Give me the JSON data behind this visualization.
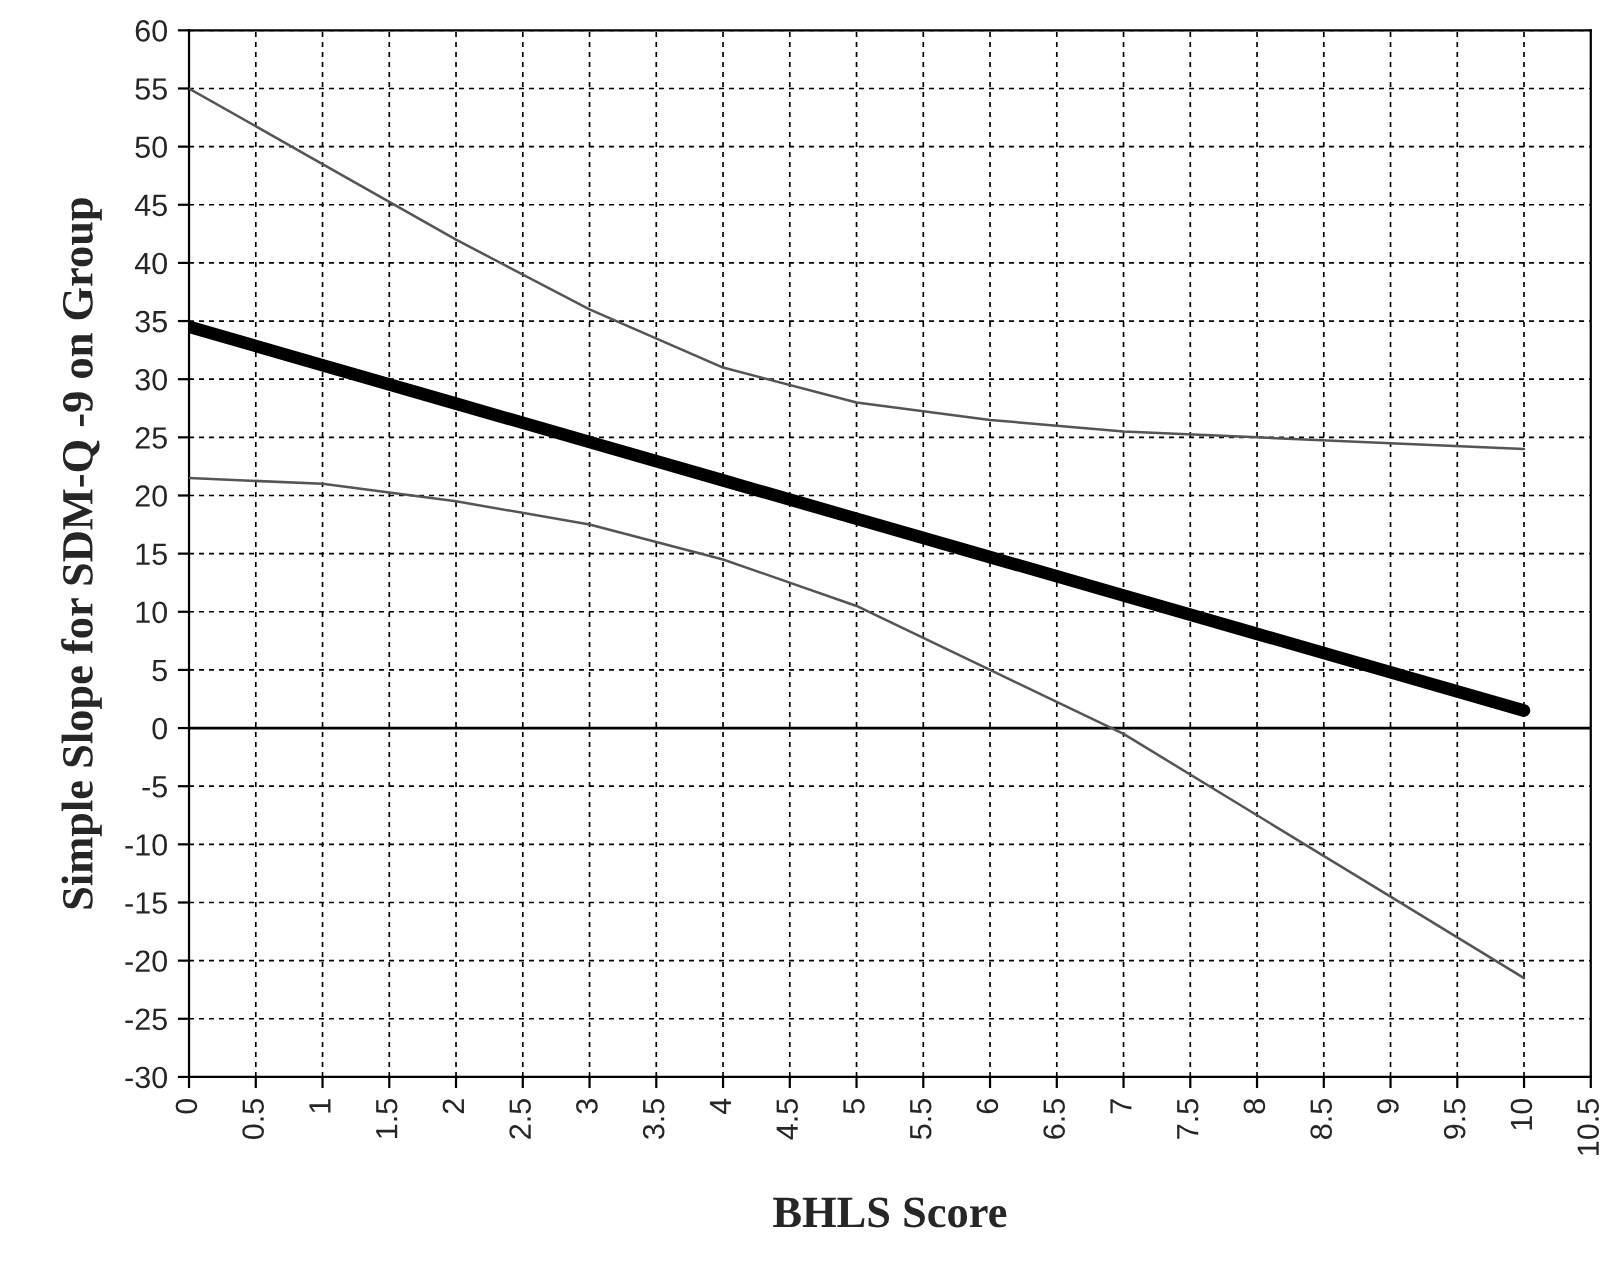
{
  "chart_data": {
    "type": "line",
    "xlabel": "BHLS Score",
    "ylabel": "Simple Slope for SDM-Q -9 on Group",
    "x": [
      0,
      1,
      2,
      3,
      4,
      5,
      6,
      7,
      8,
      9,
      10
    ],
    "series": [
      {
        "color": "#000000",
        "values": [
          34.5,
          31.2,
          27.9,
          24.6,
          21.3,
          18.0,
          14.7,
          11.4,
          8.1,
          4.8,
          1.5
        ]
      },
      {
        "color": "#555555",
        "values": [
          55,
          48.5,
          42,
          36,
          31,
          28,
          26.5,
          25.5,
          25,
          24.5,
          24
        ]
      },
      {
        "color": "#555555",
        "values": [
          21.5,
          21,
          19.5,
          17.5,
          14.5,
          10.5,
          5,
          -0.5,
          -7.5,
          -14.5,
          -21.5
        ]
      }
    ],
    "xlim": [
      0,
      10.5
    ],
    "xticks": [
      0,
      0.5,
      1,
      1.5,
      2,
      2.5,
      3,
      3.5,
      4,
      4.5,
      5,
      5.5,
      6,
      6.5,
      7,
      7.5,
      8,
      8.5,
      9,
      9.5,
      10,
      10.5
    ],
    "ylim": [
      -30,
      60
    ],
    "yticks": [
      -30,
      -25,
      -20,
      -15,
      -10,
      -5,
      0,
      5,
      10,
      15,
      20,
      25,
      30,
      35,
      40,
      45,
      50,
      55,
      60
    ],
    "ref_lines": [
      {
        "axis": "y",
        "value": 0,
        "color": "#000000"
      }
    ],
    "grid": true,
    "line_style": "solid",
    "marker": "none",
    "legend": false
  }
}
